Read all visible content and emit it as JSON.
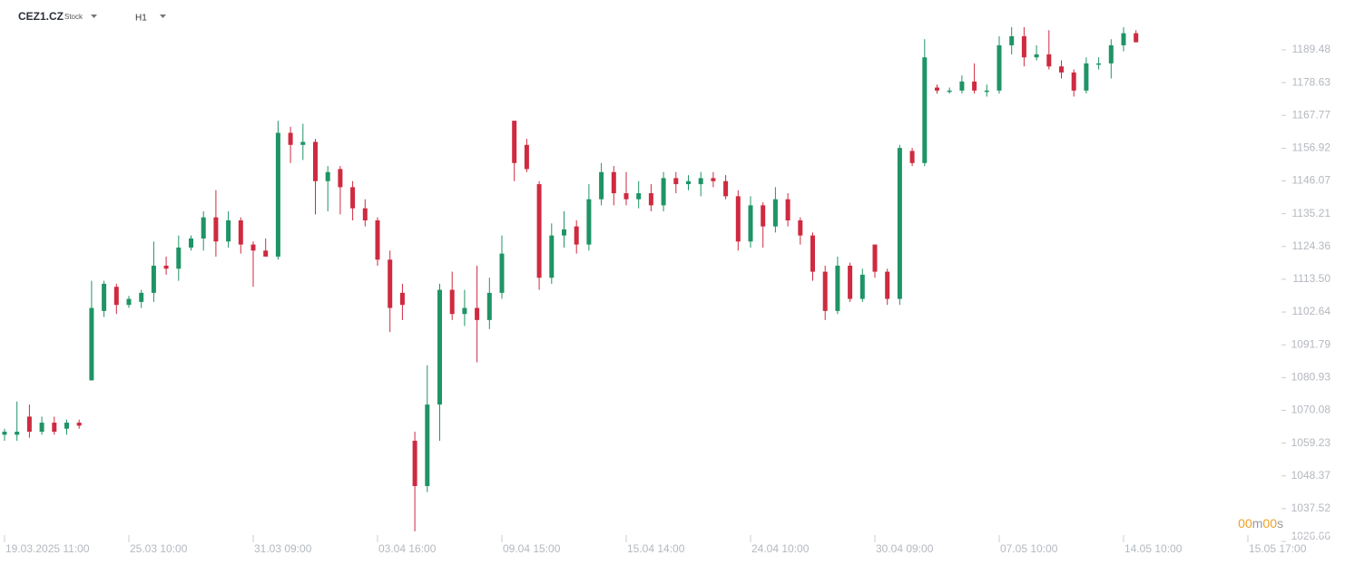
{
  "header": {
    "symbol": "CEZ1.CZ",
    "kind": "Stock",
    "timeframe": "H1"
  },
  "countdown": [
    "00",
    "m",
    "00",
    "s"
  ],
  "chart_data": {
    "type": "candlestick",
    "up_color": "#1f9466",
    "down_color": "#cf2a40",
    "categories": [
      "19.03.2025 11:00",
      null,
      null,
      null,
      null,
      null,
      null,
      null,
      null,
      null,
      "25.03 10:00",
      null,
      null,
      null,
      null,
      null,
      null,
      null,
      null,
      null,
      "31.03 09:00",
      null,
      null,
      null,
      null,
      null,
      null,
      null,
      null,
      null,
      "03.04 16:00",
      null,
      null,
      null,
      null,
      null,
      null,
      null,
      null,
      null,
      "09.04 15:00",
      null,
      null,
      null,
      null,
      null,
      null,
      null,
      null,
      null,
      "15.04 14:00",
      null,
      null,
      null,
      null,
      null,
      null,
      null,
      null,
      null,
      "24.04 10:00",
      null,
      null,
      null,
      null,
      null,
      null,
      null,
      null,
      null,
      "30.04 09:00",
      null,
      null,
      null,
      null,
      null,
      null,
      null,
      null,
      null,
      "07.05 10:00",
      null,
      null,
      null,
      null,
      null,
      null,
      null,
      null,
      null,
      "14.05 10:00",
      null,
      null,
      null,
      null,
      null,
      null,
      null,
      null,
      null,
      "15.05 17:00"
    ],
    "open": [
      1062,
      1062,
      1068,
      1063,
      1066,
      1064,
      1066,
      1080,
      1103,
      1111,
      1105,
      1106,
      1109,
      1118,
      1117,
      1124,
      1127,
      1134,
      1126,
      1133,
      1125,
      1123,
      1121,
      1162,
      1158,
      1159,
      1146,
      1150,
      1144,
      1137,
      1133,
      1120,
      1109,
      1060,
      1045,
      1072,
      1110,
      1102,
      1104,
      1100,
      1109,
      1166,
      1158,
      1145,
      1114,
      1128,
      1131,
      1125,
      1140,
      1149,
      1142,
      1140,
      1142,
      1138,
      1147,
      1145,
      1145,
      1147,
      1146,
      1141,
      1126,
      1138,
      1131,
      1140,
      1133,
      1128,
      1116,
      1103,
      1118,
      1107,
      1125,
      1116,
      1107,
      1156,
      1152,
      1177,
      1176,
      1176,
      1179,
      1176,
      1176,
      1191,
      1194,
      1187,
      1188,
      1184,
      1182,
      1176,
      1185,
      1185,
      1191,
      1195,
      null,
      null,
      null,
      null,
      null,
      null,
      null,
      null,
      null
    ],
    "high": [
      1064,
      1073,
      1072,
      1068,
      1068,
      1067,
      1067,
      1113,
      1113,
      1112,
      1108,
      1110,
      1126,
      1121,
      1128,
      1128,
      1136,
      1143,
      1136,
      1134,
      1126,
      1127,
      1166,
      1164,
      1165,
      1160,
      1151,
      1151,
      1146,
      1140,
      1134,
      1123,
      1112,
      1063,
      1085,
      1112,
      1116,
      1110,
      1118,
      1114,
      1128,
      1166,
      1160,
      1146,
      1132,
      1136,
      1133,
      1145,
      1152,
      1151,
      1149,
      1146,
      1145,
      1149,
      1149,
      1148,
      1149,
      1149,
      1148,
      1143,
      1141,
      1139,
      1144,
      1142,
      1134,
      1129,
      1118,
      1121,
      1119,
      1117,
      1125,
      1117,
      1158,
      1157,
      1193,
      1178,
      1177,
      1181,
      1185,
      1178,
      1194,
      1197,
      1197,
      1191,
      1196,
      1186,
      1183,
      1187,
      1187,
      1193,
      1197,
      1196,
      null,
      null,
      null,
      null,
      null,
      null,
      null,
      null,
      null
    ],
    "low": [
      1060,
      1060,
      1061,
      1062,
      1062,
      1062,
      1064,
      1080,
      1101,
      1102,
      1104,
      1104,
      1106,
      1115,
      1113,
      1123,
      1123,
      1121,
      1124,
      1122,
      1111,
      1121,
      1120,
      1152,
      1153,
      1135,
      1136,
      1135,
      1133,
      1131,
      1118,
      1096,
      1100,
      1030,
      1043,
      1060,
      1100,
      1098,
      1086,
      1097,
      1107,
      1146,
      1149,
      1110,
      1112,
      1124,
      1122,
      1123,
      1138,
      1138,
      1138,
      1137,
      1136,
      1136,
      1142,
      1143,
      1141,
      1144,
      1140,
      1123,
      1124,
      1124,
      1129,
      1131,
      1125,
      1113,
      1100,
      1102,
      1106,
      1106,
      1114,
      1105,
      1105,
      1151,
      1151,
      1175,
      1175,
      1175,
      1175,
      1174,
      1175,
      1188,
      1184,
      1186,
      1183,
      1180,
      1174,
      1175,
      1183,
      1180,
      1189,
      1192,
      null,
      null,
      null,
      null,
      null,
      null,
      null,
      null,
      null
    ],
    "close": [
      1063,
      1063,
      1063,
      1066,
      1063,
      1066,
      1065,
      1104,
      1112,
      1105,
      1107,
      1109,
      1118,
      1117,
      1124,
      1127,
      1134,
      1126,
      1133,
      1125,
      1123,
      1121,
      1162,
      1158,
      1159,
      1146,
      1149,
      1144,
      1137,
      1133,
      1120,
      1104,
      1105,
      1045,
      1072,
      1110,
      1102,
      1104,
      1100,
      1109,
      1122,
      1152,
      1150,
      1114,
      1128,
      1130,
      1125,
      1140,
      1149,
      1142,
      1140,
      1142,
      1138,
      1147,
      1145,
      1146,
      1147,
      1146,
      1141,
      1126,
      1138,
      1131,
      1140,
      1133,
      1128,
      1116,
      1103,
      1118,
      1107,
      1115,
      1116,
      1107,
      1157,
      1152,
      1187,
      1176,
      1176,
      1179,
      1176,
      1176,
      1191,
      1194,
      1187,
      1188,
      1184,
      1182,
      1176,
      1185,
      1185,
      1191,
      1195,
      1192,
      null,
      null,
      null,
      null,
      null,
      null,
      null,
      null,
      null
    ],
    "ylim": [
      1026.66,
      1206.0
    ],
    "yticks": [
      1026.66,
      1037.52,
      1048.37,
      1059.23,
      1070.08,
      1080.93,
      1091.79,
      1102.64,
      {
        "value": 1113.5,
        "label": "1113.50"
      },
      1124.36,
      1135.21,
      1146.07,
      1156.92,
      1167.77,
      1178.63,
      1189.48
    ]
  }
}
